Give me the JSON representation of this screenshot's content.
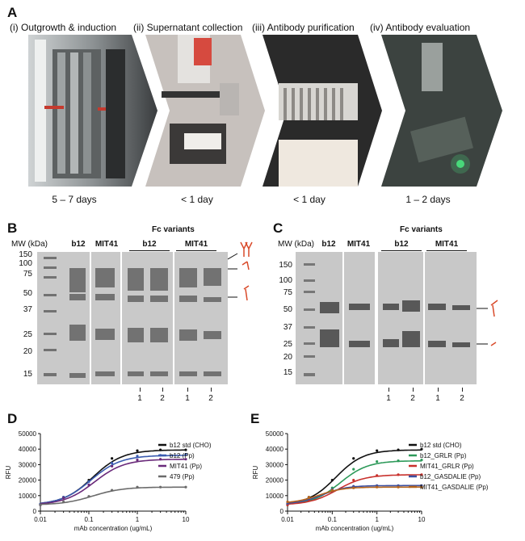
{
  "panel_a": {
    "letter": "A",
    "stages": [
      {
        "title": "(i) Outgrowth & induction",
        "duration": "5 – 7 days"
      },
      {
        "title": "(ii) Supernatant collection",
        "duration": "< 1 day"
      },
      {
        "title": "(iii) Antibody purification",
        "duration": "< 1 day"
      },
      {
        "title": "(iv) Antibody evaluation",
        "duration": "1 – 2 days"
      }
    ]
  },
  "panel_b": {
    "letter": "B",
    "mw_label": "MW (kDa)",
    "lane_b12": "b12",
    "lane_mit41": "MIT41",
    "fc_title": "Fc variants",
    "fc_b12": "b12",
    "fc_mit41": "MIT41",
    "mw_markers": [
      "150",
      "100",
      "75",
      "50",
      "37",
      "25",
      "20",
      "15"
    ],
    "lane_numbers": [
      "1",
      "2",
      "1",
      "2"
    ]
  },
  "panel_c": {
    "letter": "C",
    "mw_label": "MW (kDa)",
    "lane_b12": "b12",
    "lane_mit41": "MIT41",
    "fc_title": "Fc variants",
    "fc_b12": "b12",
    "fc_mit41": "MIT41",
    "mw_markers": [
      "150",
      "100",
      "75",
      "50",
      "37",
      "25",
      "20",
      "15"
    ],
    "lane_numbers": [
      "1",
      "2",
      "1",
      "2"
    ]
  },
  "chart_data": [
    {
      "panel": "D",
      "type": "line",
      "xlabel": "mAb concentration (ug/mL)",
      "ylabel": "RFU",
      "xscale": "log",
      "xlim": [
        0.01,
        10
      ],
      "ylim": [
        0,
        50000
      ],
      "xticks": [
        "0.01",
        "0.1",
        "1",
        "10"
      ],
      "yticks": [
        "0",
        "10000",
        "20000",
        "30000",
        "40000",
        "50000"
      ],
      "legend_position": "right",
      "series": [
        {
          "name": "b12 std (CHO)",
          "color": "#111111",
          "bottom": 4000,
          "top": 39500,
          "ec50": 0.12,
          "hill": 1.4,
          "x": [
            0.01,
            0.03,
            0.1,
            0.3,
            1,
            3,
            10
          ],
          "y": [
            4500,
            9000,
            20000,
            34000,
            39000,
            39500,
            39500
          ]
        },
        {
          "name": "b12 (Pp)",
          "color": "#3a5bb0",
          "bottom": 4000,
          "top": 36000,
          "ec50": 0.11,
          "hill": 1.4,
          "x": [
            0.01,
            0.03,
            0.1,
            0.3,
            1,
            3,
            10
          ],
          "y": [
            4500,
            9000,
            19000,
            31000,
            35500,
            36000,
            36500
          ]
        },
        {
          "name": "MIT41 (Pp)",
          "color": "#6a2a7a",
          "bottom": 4000,
          "top": 33500,
          "ec50": 0.13,
          "hill": 1.4,
          "x": [
            0.01,
            0.03,
            0.1,
            0.3,
            1,
            3,
            10
          ],
          "y": [
            4000,
            8500,
            17000,
            29000,
            33000,
            33500,
            33500
          ]
        },
        {
          "name": "479 (Pp)",
          "color": "#6b6b6b",
          "bottom": 4000,
          "top": 15500,
          "ec50": 0.12,
          "hill": 1.4,
          "x": [
            0.01,
            0.03,
            0.1,
            0.3,
            1,
            3,
            10
          ],
          "y": [
            4000,
            6000,
            9500,
            13500,
            15500,
            15500,
            15500
          ]
        }
      ]
    },
    {
      "panel": "E",
      "type": "line",
      "xlabel": "mAb concentration (ug/mL)",
      "ylabel": "RFU",
      "xscale": "log",
      "xlim": [
        0.01,
        10
      ],
      "ylim": [
        0,
        50000
      ],
      "xticks": [
        "0.01",
        "0.1",
        "1",
        "10"
      ],
      "yticks": [
        "0",
        "10000",
        "20000",
        "30000",
        "40000",
        "50000"
      ],
      "legend_position": "right",
      "series": [
        {
          "name": "b12 std (CHO)",
          "color": "#111111",
          "bottom": 4000,
          "top": 39500,
          "ec50": 0.12,
          "hill": 1.4,
          "x": [
            0.01,
            0.03,
            0.1,
            0.3,
            1,
            3,
            10
          ],
          "y": [
            4500,
            9000,
            20000,
            34000,
            39000,
            39500,
            40000
          ]
        },
        {
          "name": "b12_GRLR (Pp)",
          "color": "#2e9a5a",
          "bottom": 4000,
          "top": 32500,
          "ec50": 0.15,
          "hill": 1.4,
          "x": [
            0.01,
            0.03,
            0.1,
            0.3,
            1,
            3,
            10
          ],
          "y": [
            4000,
            7500,
            15000,
            27000,
            32000,
            32500,
            33000
          ]
        },
        {
          "name": "MIT41_GRLR (Pp)",
          "color": "#c8302c",
          "bottom": 4000,
          "top": 23500,
          "ec50": 0.13,
          "hill": 1.4,
          "x": [
            0.01,
            0.03,
            0.1,
            0.3,
            1,
            3,
            10
          ],
          "y": [
            4000,
            7000,
            12500,
            20000,
            23000,
            23500,
            23500
          ]
        },
        {
          "name": "b12_GASDALIE (Pp)",
          "color": "#3b4fa0",
          "bottom": 4500,
          "top": 16500,
          "ec50": 0.06,
          "hill": 1.6,
          "x": [
            0.01,
            0.03,
            0.1,
            0.3,
            1,
            3,
            10
          ],
          "y": [
            5000,
            8500,
            14000,
            16000,
            16500,
            16500,
            16500
          ]
        },
        {
          "name": "MIT41_GASDALIE (Pp)",
          "color": "#b5651d",
          "bottom": 5000,
          "top": 15500,
          "ec50": 0.05,
          "hill": 1.6,
          "x": [
            0.01,
            0.03,
            0.1,
            0.3,
            1,
            3,
            10
          ],
          "y": [
            6000,
            9000,
            13500,
            15000,
            15500,
            15500,
            15500
          ]
        }
      ]
    }
  ]
}
